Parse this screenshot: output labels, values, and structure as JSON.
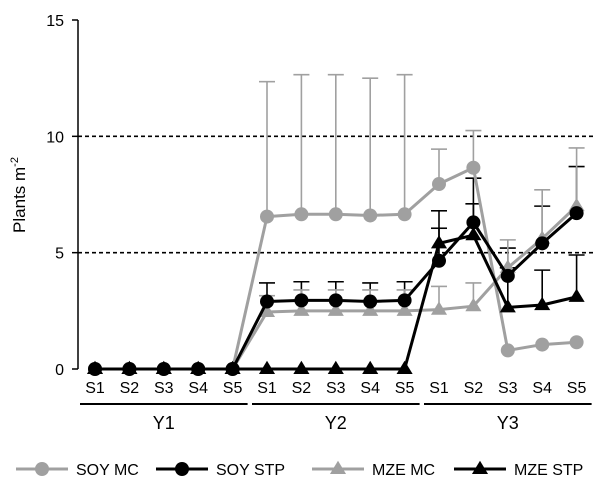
{
  "chart_data": {
    "type": "line",
    "title": "",
    "ylabel": "Plants m",
    "ylabel_sup": "-2",
    "ylim": [
      0,
      15
    ],
    "yticks": [
      0,
      5,
      10,
      15
    ],
    "reference_lines": [
      5,
      10
    ],
    "categories": [
      "S1",
      "S2",
      "S3",
      "S4",
      "S5",
      "S1",
      "S2",
      "S3",
      "S4",
      "S5",
      "S1",
      "S2",
      "S3",
      "S4",
      "S5"
    ],
    "groups": [
      {
        "label": "Y1",
        "start": 0,
        "end": 4
      },
      {
        "label": "Y2",
        "start": 5,
        "end": 9
      },
      {
        "label": "Y3",
        "start": 10,
        "end": 14
      }
    ],
    "legend_position": "bottom",
    "series": [
      {
        "name": "SOY MC",
        "color": "#a0a0a0",
        "marker": "circle",
        "values": [
          0,
          0,
          0,
          0,
          0,
          6.55,
          6.65,
          6.65,
          6.6,
          6.65,
          7.95,
          8.65,
          0.8,
          1.05,
          1.15
        ],
        "errors": [
          0,
          0,
          0,
          0,
          0,
          5.8,
          6.0,
          6.0,
          5.9,
          6.0,
          1.5,
          1.6,
          0,
          0,
          0
        ]
      },
      {
        "name": "SOY STP",
        "color": "#000000",
        "marker": "circle",
        "values": [
          0,
          0,
          0,
          0,
          0,
          2.9,
          2.95,
          2.95,
          2.9,
          2.95,
          4.65,
          6.3,
          4.0,
          5.4,
          6.7
        ],
        "errors": [
          0,
          0,
          0,
          0,
          0,
          0.8,
          0.8,
          0.8,
          0.8,
          0.8,
          1.4,
          1.9,
          1.2,
          1.6,
          2.0
        ]
      },
      {
        "name": "MZE MC",
        "color": "#a0a0a0",
        "marker": "triangle",
        "values": [
          0,
          0,
          0,
          0,
          0,
          2.45,
          2.5,
          2.5,
          2.5,
          2.5,
          2.55,
          2.7,
          4.35,
          5.6,
          7.0
        ],
        "errors": [
          0,
          0,
          0,
          0,
          0,
          0.7,
          0.9,
          0.9,
          0.9,
          0.9,
          1.0,
          1.0,
          1.2,
          2.1,
          2.5
        ]
      },
      {
        "name": "MZE STP",
        "color": "#000000",
        "marker": "triangle",
        "values": [
          0,
          0,
          0,
          0,
          0,
          0,
          0,
          0,
          0,
          0,
          5.4,
          5.75,
          2.65,
          2.75,
          3.1
        ],
        "errors": [
          0,
          0,
          0,
          0,
          0,
          0,
          0,
          0,
          0,
          0,
          1.4,
          1.35,
          1.7,
          1.5,
          1.8
        ]
      }
    ]
  }
}
